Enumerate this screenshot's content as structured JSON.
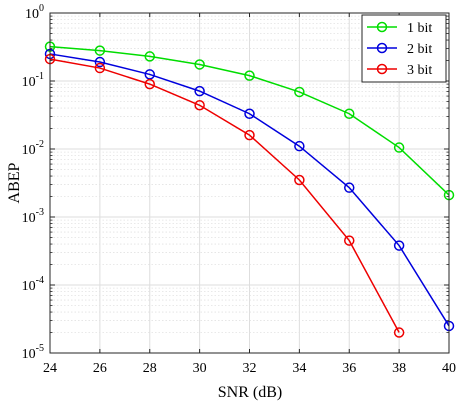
{
  "chart_data": {
    "type": "line",
    "title": "",
    "xlabel": "SNR (dB)",
    "ylabel": "ABEP",
    "xlim": [
      24,
      40
    ],
    "ylim": [
      1e-05,
      1
    ],
    "yscale": "log",
    "grid": true,
    "legend_position": "top-right",
    "x_ticks": [
      24,
      26,
      28,
      30,
      32,
      34,
      36,
      38,
      40
    ],
    "y_ticks": [
      {
        "base": "10",
        "exp": "0",
        "value": 1
      },
      {
        "base": "10",
        "exp": "-1",
        "value": 0.1
      },
      {
        "base": "10",
        "exp": "-2",
        "value": 0.01
      },
      {
        "base": "10",
        "exp": "-3",
        "value": 0.001
      },
      {
        "base": "10",
        "exp": "-4",
        "value": 0.0001
      },
      {
        "base": "10",
        "exp": "-5",
        "value": 1e-05
      }
    ],
    "series": [
      {
        "name": "1 bit",
        "color": "#00dd00",
        "marker": "circle",
        "x": [
          24,
          26,
          28,
          30,
          32,
          34,
          36,
          38,
          40
        ],
        "y": [
          0.32,
          0.28,
          0.23,
          0.175,
          0.12,
          0.069,
          0.033,
          0.0105,
          0.0021
        ]
      },
      {
        "name": "2 bit",
        "color": "#0000dd",
        "marker": "circle",
        "x": [
          24,
          26,
          28,
          30,
          32,
          34,
          36,
          38,
          40
        ],
        "y": [
          0.25,
          0.19,
          0.125,
          0.071,
          0.033,
          0.011,
          0.0027,
          0.00038,
          2.5e-05
        ]
      },
      {
        "name": "3 bit",
        "color": "#ee0000",
        "marker": "circle",
        "x": [
          24,
          26,
          28,
          30,
          32,
          34,
          36,
          38
        ],
        "y": [
          0.21,
          0.155,
          0.09,
          0.044,
          0.016,
          0.0035,
          0.00045,
          2e-05
        ]
      }
    ]
  }
}
